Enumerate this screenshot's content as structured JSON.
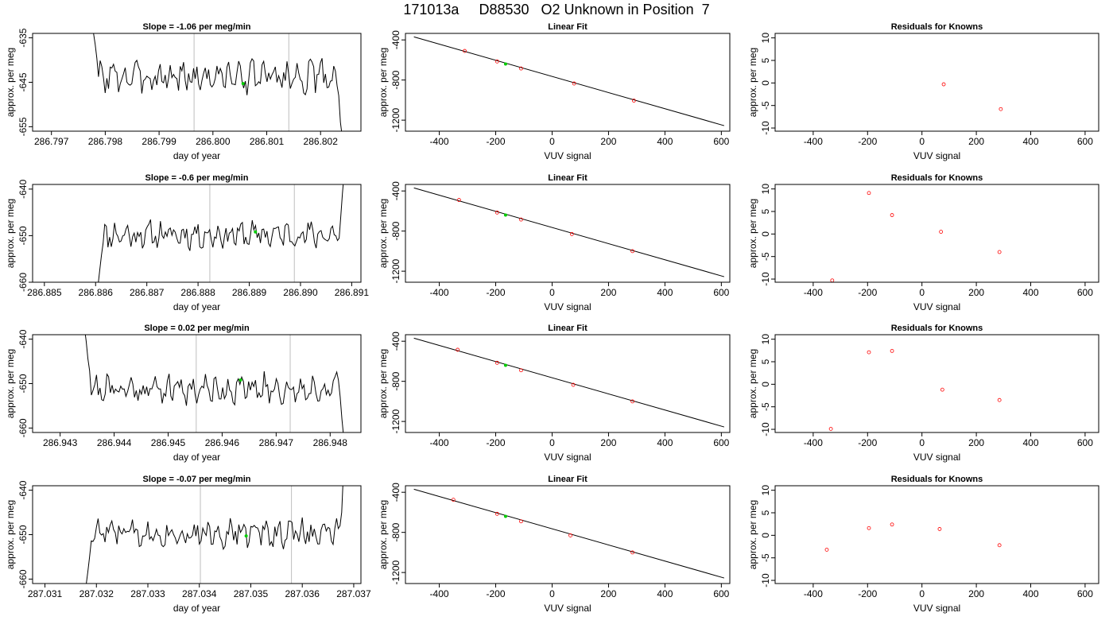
{
  "figure": {
    "title": "171013a     D88530   O2 Unknown in Position  7"
  },
  "chart_data": [
    {
      "type": "line",
      "title": "Slope =  -1.06  per meg/min",
      "xlabel": "day of year",
      "ylabel": "approx. per meg",
      "xlim": [
        286.79665,
        286.80275
      ],
      "ylim": [
        -656,
        -634
      ],
      "xticks": [
        286.797,
        286.798,
        286.799,
        286.8,
        286.801,
        286.802
      ],
      "xtick_labels": [
        "286.797",
        "286.798",
        "286.799",
        "286.800",
        "286.801",
        "286.802"
      ],
      "yticks": [
        -635,
        -645,
        -655
      ],
      "ytick_labels": [
        "-635",
        "-645",
        "-655"
      ],
      "vlines": [
        286.79965,
        286.80141
      ],
      "trace": {
        "x_start": 286.79775,
        "x_end": 286.8024,
        "start": [
          -631,
          -634,
          -637,
          -640
        ],
        "level": -643.7,
        "amplitude": 2.2,
        "seed": 3,
        "end": [
          -648,
          -654,
          -657
        ]
      },
      "marker": {
        "x": 286.80056,
        "y": -645.3
      },
      "grid": false
    },
    {
      "type": "scatter",
      "title": "Linear Fit",
      "xlabel": "VUV signal",
      "ylabel": "approx. per meg",
      "xlim": [
        -520,
        630
      ],
      "ylim": [
        -1310,
        -335
      ],
      "xticks": [
        -400,
        -200,
        0,
        200,
        400,
        600
      ],
      "yticks": [
        -400,
        -800,
        -1200
      ],
      "fit_line": {
        "x": [
          -490,
          610
        ],
        "y": [
          -370,
          -1255
        ]
      },
      "points": [
        {
          "x": -310,
          "y": -510
        },
        {
          "x": -195,
          "y": -615
        },
        {
          "x": -110,
          "y": -685
        },
        {
          "x": 78,
          "y": -835
        },
        {
          "x": 290,
          "y": -1005
        }
      ],
      "unknowns": [
        {
          "x": -165,
          "y": -640
        }
      ],
      "grid": false
    },
    {
      "type": "scatter",
      "title": "Residuals for Knowns",
      "xlabel": "VUV signal",
      "ylabel": "approx. per meg",
      "xlim": [
        -540,
        650
      ],
      "ylim": [
        -10.7,
        11
      ],
      "xticks": [
        -400,
        -200,
        0,
        200,
        400,
        600
      ],
      "yticks": [
        10,
        5,
        0,
        -5,
        -10
      ],
      "points": [
        {
          "x": 80,
          "y": -0.3
        },
        {
          "x": 290,
          "y": -5.8
        }
      ],
      "grid": false
    },
    {
      "type": "line",
      "title": "Slope =  -0.6  per meg/min",
      "xlabel": "day of year",
      "ylabel": "approx. per meg",
      "xlim": [
        286.88477,
        286.89118
      ],
      "ylim": [
        -660,
        -639
      ],
      "xticks": [
        286.885,
        286.886,
        286.887,
        286.888,
        286.889,
        286.89,
        286.891
      ],
      "xtick_labels": [
        "286.885",
        "286.886",
        "286.887",
        "286.888",
        "286.889",
        "286.890",
        "286.891"
      ],
      "yticks": [
        -640,
        -650,
        -660
      ],
      "ytick_labels": [
        "-640",
        "-650",
        "-660"
      ],
      "vlines": [
        286.88823,
        286.88988
      ],
      "trace": {
        "x_start": 286.88605,
        "x_end": 286.89085,
        "start": [
          -660,
          -657,
          -654,
          -651
        ],
        "level": -649.8,
        "amplitude": 1.8,
        "seed": 11,
        "end": [
          -646,
          -641,
          -637
        ]
      },
      "marker": {
        "x": 286.88912,
        "y": -649.2
      },
      "grid": false
    },
    {
      "type": "scatter",
      "title": "Linear Fit",
      "xlabel": "VUV signal",
      "ylabel": "approx. per meg",
      "xlim": [
        -520,
        630
      ],
      "ylim": [
        -1310,
        -335
      ],
      "xticks": [
        -400,
        -200,
        0,
        200,
        400,
        600
      ],
      "yticks": [
        -400,
        -800,
        -1200
      ],
      "fit_line": {
        "x": [
          -490,
          610
        ],
        "y": [
          -370,
          -1255
        ]
      },
      "points": [
        {
          "x": -330,
          "y": -490
        },
        {
          "x": -195,
          "y": -615
        },
        {
          "x": -110,
          "y": -685
        },
        {
          "x": 70,
          "y": -830
        },
        {
          "x": 285,
          "y": -1000
        }
      ],
      "unknowns": [
        {
          "x": -165,
          "y": -640
        }
      ],
      "grid": false
    },
    {
      "type": "scatter",
      "title": "Residuals for Knowns",
      "xlabel": "VUV signal",
      "ylabel": "approx. per meg",
      "xlim": [
        -540,
        650
      ],
      "ylim": [
        -10.7,
        11
      ],
      "xticks": [
        -400,
        -200,
        0,
        200,
        400,
        600
      ],
      "yticks": [
        10,
        5,
        0,
        -5,
        -10
      ],
      "points": [
        {
          "x": -330,
          "y": -10.3
        },
        {
          "x": -195,
          "y": 9.1
        },
        {
          "x": -110,
          "y": 4.2
        },
        {
          "x": 70,
          "y": 0.5
        },
        {
          "x": 285,
          "y": -4.0
        }
      ],
      "grid": false
    },
    {
      "type": "line",
      "title": "Slope =  0.02  per meg/min",
      "xlabel": "day of year",
      "ylabel": "approx. per meg",
      "xlim": [
        286.94249,
        286.94857
      ],
      "ylim": [
        -661,
        -639
      ],
      "xticks": [
        286.943,
        286.944,
        286.945,
        286.946,
        286.947,
        286.948
      ],
      "xtick_labels": [
        "286.943",
        "286.944",
        "286.945",
        "286.946",
        "286.947",
        "286.948"
      ],
      "yticks": [
        -640,
        -650,
        -660
      ],
      "ytick_labels": [
        "-640",
        "-650",
        "-660"
      ],
      "vlines": [
        286.94552,
        286.94726
      ],
      "trace": {
        "x_start": 286.94345,
        "x_end": 286.94825,
        "start": [
          -637,
          -640,
          -644,
          -647
        ],
        "level": -651.2,
        "amplitude": 2.0,
        "seed": 21,
        "end": [
          -653,
          -658,
          -662
        ]
      },
      "marker": {
        "x": 286.94634,
        "y": -649.2
      },
      "grid": false
    },
    {
      "type": "scatter",
      "title": "Linear Fit",
      "xlabel": "VUV signal",
      "ylabel": "approx. per meg",
      "xlim": [
        -520,
        630
      ],
      "ylim": [
        -1310,
        -335
      ],
      "xticks": [
        -400,
        -200,
        0,
        200,
        400,
        600
      ],
      "yticks": [
        -400,
        -800,
        -1200
      ],
      "fit_line": {
        "x": [
          -490,
          610
        ],
        "y": [
          -370,
          -1255
        ]
      },
      "points": [
        {
          "x": -335,
          "y": -485
        },
        {
          "x": -195,
          "y": -615
        },
        {
          "x": -110,
          "y": -690
        },
        {
          "x": 75,
          "y": -835
        },
        {
          "x": 285,
          "y": -1000
        }
      ],
      "unknowns": [
        {
          "x": -165,
          "y": -640
        }
      ],
      "grid": false
    },
    {
      "type": "scatter",
      "title": "Residuals for Knowns",
      "xlabel": "VUV signal",
      "ylabel": "approx. per meg",
      "xlim": [
        -540,
        650
      ],
      "ylim": [
        -10.7,
        11
      ],
      "xticks": [
        -400,
        -200,
        0,
        200,
        400,
        600
      ],
      "yticks": [
        10,
        5,
        0,
        -5,
        -10
      ],
      "points": [
        {
          "x": -335,
          "y": -9.9
        },
        {
          "x": -195,
          "y": 7.1
        },
        {
          "x": -110,
          "y": 7.4
        },
        {
          "x": 75,
          "y": -1.2
        },
        {
          "x": 285,
          "y": -3.5
        }
      ],
      "grid": false
    },
    {
      "type": "line",
      "title": "Slope =  -0.07  per meg/min",
      "xlabel": "day of year",
      "ylabel": "approx. per meg",
      "xlim": [
        287.03076,
        287.03714
      ],
      "ylim": [
        -661,
        -639
      ],
      "xticks": [
        287.031,
        287.032,
        287.033,
        287.034,
        287.035,
        287.036,
        287.037
      ],
      "xtick_labels": [
        "287.031",
        "287.032",
        "287.033",
        "287.034",
        "287.035",
        "287.036",
        "287.037"
      ],
      "yticks": [
        -640,
        -650,
        -660
      ],
      "ytick_labels": [
        "-640",
        "-650",
        "-660"
      ],
      "vlines": [
        287.03402,
        287.03579
      ],
      "trace": {
        "x_start": 287.0318,
        "x_end": 287.0368,
        "start": [
          -661,
          -658,
          -655,
          -652
        ],
        "level": -649.6,
        "amplitude": 1.9,
        "seed": 33,
        "end": [
          -648,
          -645,
          -636
        ]
      },
      "marker": {
        "x": 287.03491,
        "y": -650.3
      },
      "grid": false
    },
    {
      "type": "scatter",
      "title": "Linear Fit",
      "xlabel": "VUV signal",
      "ylabel": "approx. per meg",
      "xlim": [
        -520,
        630
      ],
      "ylim": [
        -1310,
        -335
      ],
      "xticks": [
        -400,
        -200,
        0,
        200,
        400,
        600
      ],
      "yticks": [
        -400,
        -800,
        -1200
      ],
      "fit_line": {
        "x": [
          -490,
          610
        ],
        "y": [
          -370,
          -1255
        ]
      },
      "points": [
        {
          "x": -350,
          "y": -475
        },
        {
          "x": -195,
          "y": -615
        },
        {
          "x": -110,
          "y": -690
        },
        {
          "x": 65,
          "y": -830
        },
        {
          "x": 285,
          "y": -1000
        }
      ],
      "unknowns": [
        {
          "x": -165,
          "y": -640
        }
      ],
      "grid": false
    },
    {
      "type": "scatter",
      "title": "Residuals for Knowns",
      "xlabel": "VUV signal",
      "ylabel": "approx. per meg",
      "xlim": [
        -540,
        650
      ],
      "ylim": [
        -10.7,
        11
      ],
      "xticks": [
        -400,
        -200,
        0,
        200,
        400,
        600
      ],
      "yticks": [
        10,
        5,
        0,
        -5,
        -10
      ],
      "points": [
        {
          "x": -350,
          "y": -3.2
        },
        {
          "x": -195,
          "y": 1.6
        },
        {
          "x": -110,
          "y": 2.4
        },
        {
          "x": 65,
          "y": 1.4
        },
        {
          "x": 285,
          "y": -2.2
        }
      ],
      "grid": false
    }
  ],
  "colors": {
    "trace": "#000000",
    "vline": "#bebebe",
    "known_point": "#ff0000",
    "unknown_point": "#00cd00",
    "axis": "#000000"
  }
}
